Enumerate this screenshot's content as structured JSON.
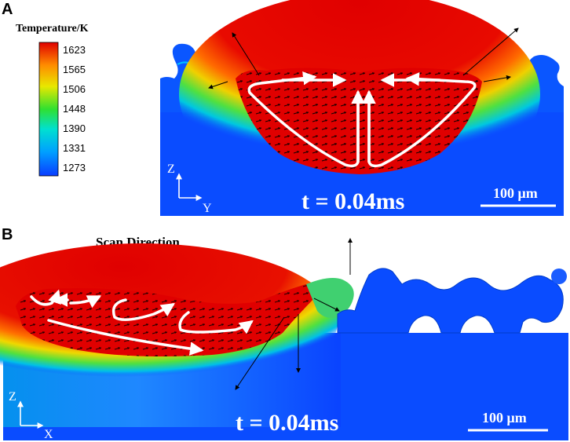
{
  "panel_a": {
    "label": "A",
    "colorbar": {
      "title": "Temperature/K",
      "ticks": [
        "1623",
        "1565",
        "1506",
        "1448",
        "1390",
        "1331",
        "1273"
      ],
      "colors": [
        "#0a3cff",
        "#00a0ff",
        "#00e0d0",
        "#30e030",
        "#e8e800",
        "#ff8c00",
        "#e00000"
      ]
    },
    "time": "t = 0.04ms",
    "scale_bar": "100 μm",
    "axis_up": "Z",
    "axis_right": "Y"
  },
  "panel_b": {
    "label": "B",
    "scan_direction": "Scan Direction",
    "time": "t = 0.04ms",
    "scale_bar": "100 μm",
    "axis_up": "Z",
    "axis_right": "X"
  }
}
